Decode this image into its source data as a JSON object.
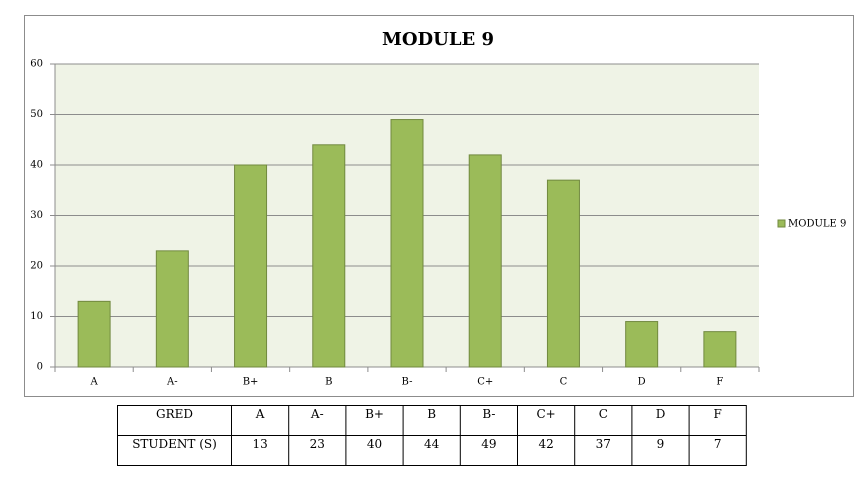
{
  "chart_data": {
    "type": "bar",
    "title": "MODULE 9",
    "categories": [
      "A",
      "A-",
      "B+",
      "B",
      "B-",
      "C+",
      "C",
      "D",
      "F"
    ],
    "series": [
      {
        "name": "MODULE 9",
        "color": "#9bbb59",
        "values": [
          13,
          23,
          40,
          44,
          49,
          42,
          37,
          9,
          7
        ]
      }
    ],
    "ylim": [
      0,
      60
    ],
    "yticks": [
      0,
      10,
      20,
      30,
      40,
      50,
      60
    ],
    "grid": true,
    "legend": "right"
  },
  "table": {
    "row_labels": [
      "GRED",
      "STUDENT (S)"
    ]
  }
}
